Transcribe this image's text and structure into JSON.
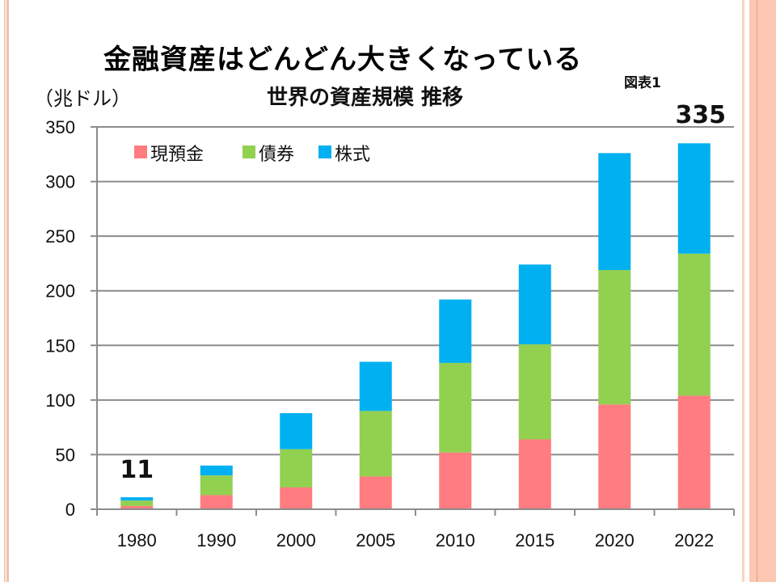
{
  "slide": {
    "main_title": "金融資産はどんどん大きくなっている",
    "figure_label": "図表1"
  },
  "chart_data": {
    "type": "bar",
    "stacked": true,
    "title": "世界の資産規模  推移",
    "ylabel": "（兆ドル）",
    "xlabel": "",
    "categories": [
      "1980",
      "1990",
      "2000",
      "2005",
      "2010",
      "2015",
      "2020",
      "2022"
    ],
    "series": [
      {
        "name": "現預金",
        "color": "#ff7c80",
        "values": [
          3,
          13,
          20,
          30,
          52,
          64,
          96,
          104
        ]
      },
      {
        "name": "債券",
        "color": "#92d050",
        "values": [
          5,
          18,
          35,
          60,
          82,
          87,
          123,
          130
        ]
      },
      {
        "name": "株式",
        "color": "#00b0f0",
        "values": [
          3,
          9,
          33,
          45,
          58,
          73,
          107,
          101
        ]
      }
    ],
    "ylim": [
      0,
      350
    ],
    "yticks": [
      "0",
      "50",
      "100",
      "150",
      "200",
      "250",
      "300",
      "350"
    ],
    "grid": true,
    "legend_position": "top-left",
    "annotations": [
      {
        "category": "1980",
        "text": "11"
      },
      {
        "category": "2022",
        "text": "335"
      }
    ]
  }
}
